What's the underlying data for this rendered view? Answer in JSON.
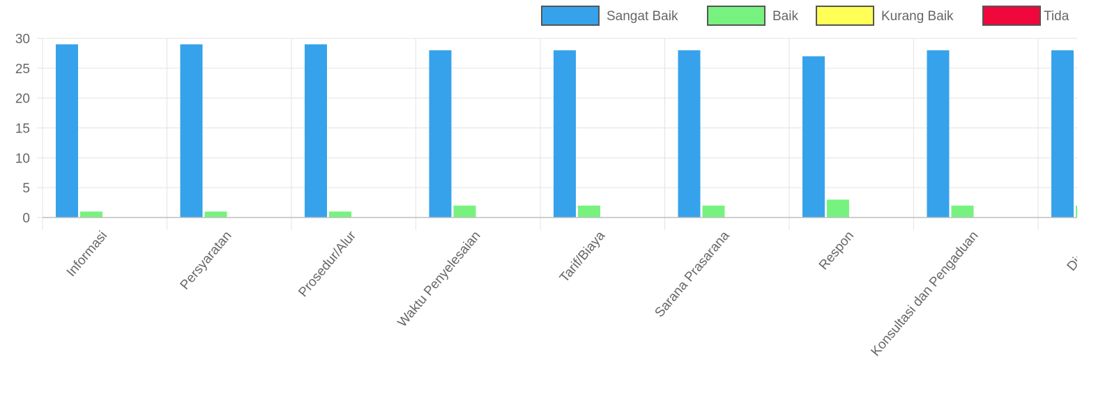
{
  "chart_data": {
    "type": "bar",
    "categories": [
      "Informasi",
      "Persyaratan",
      "Prosedur/Alur",
      "Waktu Penyelesaian",
      "Tarif/Biaya",
      "Sarana Prasarana",
      "Respon",
      "Konsultasi dan Pengaduan",
      "Diskrimi"
    ],
    "series": [
      {
        "name": "Sangat Baik",
        "color": "#36a2eb",
        "border": "#555555",
        "values": [
          29,
          29,
          29,
          28,
          28,
          28,
          27,
          28,
          28
        ]
      },
      {
        "name": "Baik",
        "color": "#77f27f",
        "border": "#555555",
        "values": [
          1,
          1,
          1,
          2,
          2,
          2,
          3,
          2,
          2
        ]
      },
      {
        "name": "Kurang Baik",
        "color": "#ffff55",
        "border": "#555555",
        "values": [
          0,
          0,
          0,
          0,
          0,
          0,
          0,
          0,
          0
        ]
      },
      {
        "name": "Tida",
        "color": "#f0073c",
        "border": "#555555",
        "values": [
          0,
          0,
          0,
          0,
          0,
          0,
          0,
          0,
          0
        ]
      }
    ],
    "yticks": [
      0,
      5,
      10,
      15,
      20,
      25,
      30
    ],
    "ylim": [
      0,
      30
    ],
    "title": "",
    "xlabel": "",
    "ylabel": "",
    "grid": true,
    "legend_position": "top-right",
    "xtick_rotation_deg": -50
  }
}
